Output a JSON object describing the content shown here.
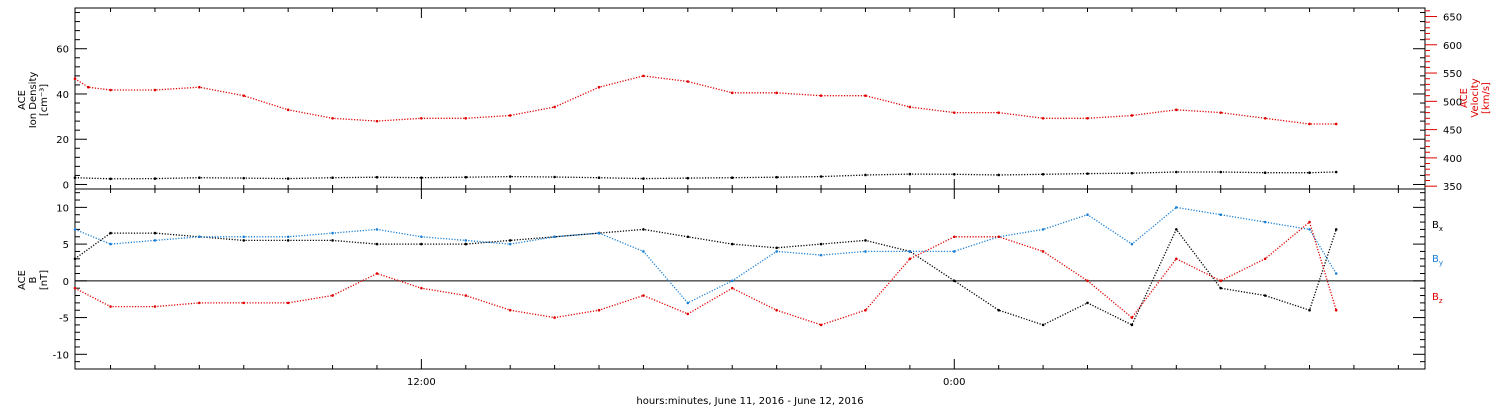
{
  "chart_data": {
    "type": "scatter",
    "xlabel": "hours:minutes, June 11, 2016 - June 12, 2016",
    "x_unit": "hours since 2016-06-11 00:00",
    "xlim": [
      4.2,
      34.6
    ],
    "x_ticks": [
      {
        "x": 12,
        "label": "12:00"
      },
      {
        "x": 24,
        "label": "0:00"
      },
      {
        "x": 36,
        "label": "12:00"
      }
    ],
    "panels": [
      {
        "name": "top-panel",
        "left_axis": {
          "label_lines": [
            "ACE",
            "Ion Density",
            "[cm⁻³]"
          ],
          "ylim": [
            -2,
            78
          ],
          "ticks": [
            0,
            20,
            40,
            60
          ],
          "color": "#000000"
        },
        "right_axis": {
          "label_lines": [
            "ACE",
            "Velocity",
            "[km/s]"
          ],
          "ylim": [
            345,
            665
          ],
          "ticks": [
            350,
            400,
            450,
            500,
            550,
            600,
            650
          ],
          "color": "#e00000"
        },
        "series": [
          {
            "axis": "left",
            "color": "#000000",
            "x": [
              4.2,
              5,
              6,
              7,
              8,
              9,
              10,
              11,
              12,
              13,
              14,
              15,
              16,
              17,
              18,
              19,
              20,
              21,
              22,
              23,
              24,
              25,
              26,
              27,
              28,
              29,
              30,
              31,
              32,
              32.6
            ],
            "y": [
              3,
              2.5,
              2.6,
              3,
              2.8,
              2.6,
              3,
              3.2,
              3,
              3.2,
              3.5,
              3.3,
              3,
              2.6,
              2.8,
              3,
              3.2,
              3.5,
              4.2,
              4.6,
              4.5,
              4.2,
              4.5,
              4.8,
              5,
              5.5,
              5.5,
              5.2,
              5.2,
              5.5
            ]
          },
          {
            "axis": "right",
            "color": "#e00000",
            "x": [
              4.2,
              4.5,
              5,
              6,
              7,
              8,
              9,
              10,
              11,
              12,
              13,
              14,
              15,
              16,
              17,
              18,
              19,
              20,
              21,
              22,
              23,
              24,
              25,
              26,
              27,
              28,
              29,
              30,
              31,
              32,
              32.6
            ],
            "y": [
              540,
              525,
              520,
              520,
              525,
              510,
              485,
              470,
              465,
              470,
              470,
              475,
              490,
              525,
              545,
              535,
              515,
              515,
              510,
              510,
              490,
              480,
              480,
              470,
              470,
              475,
              485,
              480,
              470,
              460,
              460
            ]
          }
        ]
      },
      {
        "name": "bottom-panel",
        "left_axis": {
          "label_lines": [
            "ACE",
            "B",
            "[nT]"
          ],
          "ylim": [
            -12,
            12.5
          ],
          "ticks": [
            -10,
            -5,
            0,
            5,
            10
          ],
          "color": "#000000"
        },
        "zero_line": true,
        "series": [
          {
            "name": "Bx",
            "color": "#000000",
            "x": [
              4.2,
              5,
              6,
              7,
              8,
              9,
              10,
              11,
              12,
              13,
              14,
              15,
              16,
              17,
              18,
              19,
              20,
              21,
              22,
              23,
              24,
              25,
              26,
              27,
              28,
              29,
              30,
              31,
              32,
              32.6
            ],
            "y": [
              3,
              6.5,
              6.5,
              6,
              5.5,
              5.5,
              5.5,
              5,
              5,
              5,
              5.5,
              6,
              6.5,
              7,
              6,
              5,
              4.5,
              5,
              5.5,
              4,
              0,
              -4,
              -6,
              -3,
              -6,
              7,
              -1,
              -2,
              -4,
              7
            ]
          },
          {
            "name": "By",
            "color": "#1a7fd4",
            "x": [
              4.2,
              5,
              6,
              7,
              8,
              9,
              10,
              11,
              12,
              13,
              14,
              15,
              16,
              17,
              18,
              19,
              20,
              21,
              22,
              23,
              24,
              25,
              26,
              27,
              28,
              29,
              30,
              31,
              32,
              32.6
            ],
            "y": [
              7,
              5,
              5.5,
              6,
              6,
              6,
              6.5,
              7,
              6,
              5.5,
              5,
              6,
              6.5,
              4,
              -3,
              0,
              4,
              3.5,
              4,
              4,
              4,
              6,
              7,
              9,
              5,
              10,
              9,
              8,
              7,
              1
            ]
          },
          {
            "name": "Bz",
            "color": "#e00000",
            "x": [
              4.2,
              5,
              6,
              7,
              8,
              9,
              10,
              11,
              12,
              13,
              14,
              15,
              16,
              17,
              18,
              19,
              20,
              21,
              22,
              23,
              24,
              25,
              26,
              27,
              28,
              29,
              30,
              31,
              32,
              32.6
            ],
            "y": [
              -1,
              -3.5,
              -3.5,
              -3,
              -3,
              -3,
              -2,
              1,
              -1,
              -2,
              -4,
              -5,
              -4,
              -2,
              -4.5,
              -1,
              -4,
              -6,
              -4,
              3,
              6,
              6,
              4,
              0,
              -5,
              3,
              0,
              3,
              8,
              -4
            ]
          }
        ],
        "legend_placement": "right"
      }
    ]
  },
  "legend": {
    "bx_main": "B",
    "bx_sub": "x",
    "by_main": "B",
    "by_sub": "y",
    "bz_main": "B",
    "bz_sub": "z"
  }
}
